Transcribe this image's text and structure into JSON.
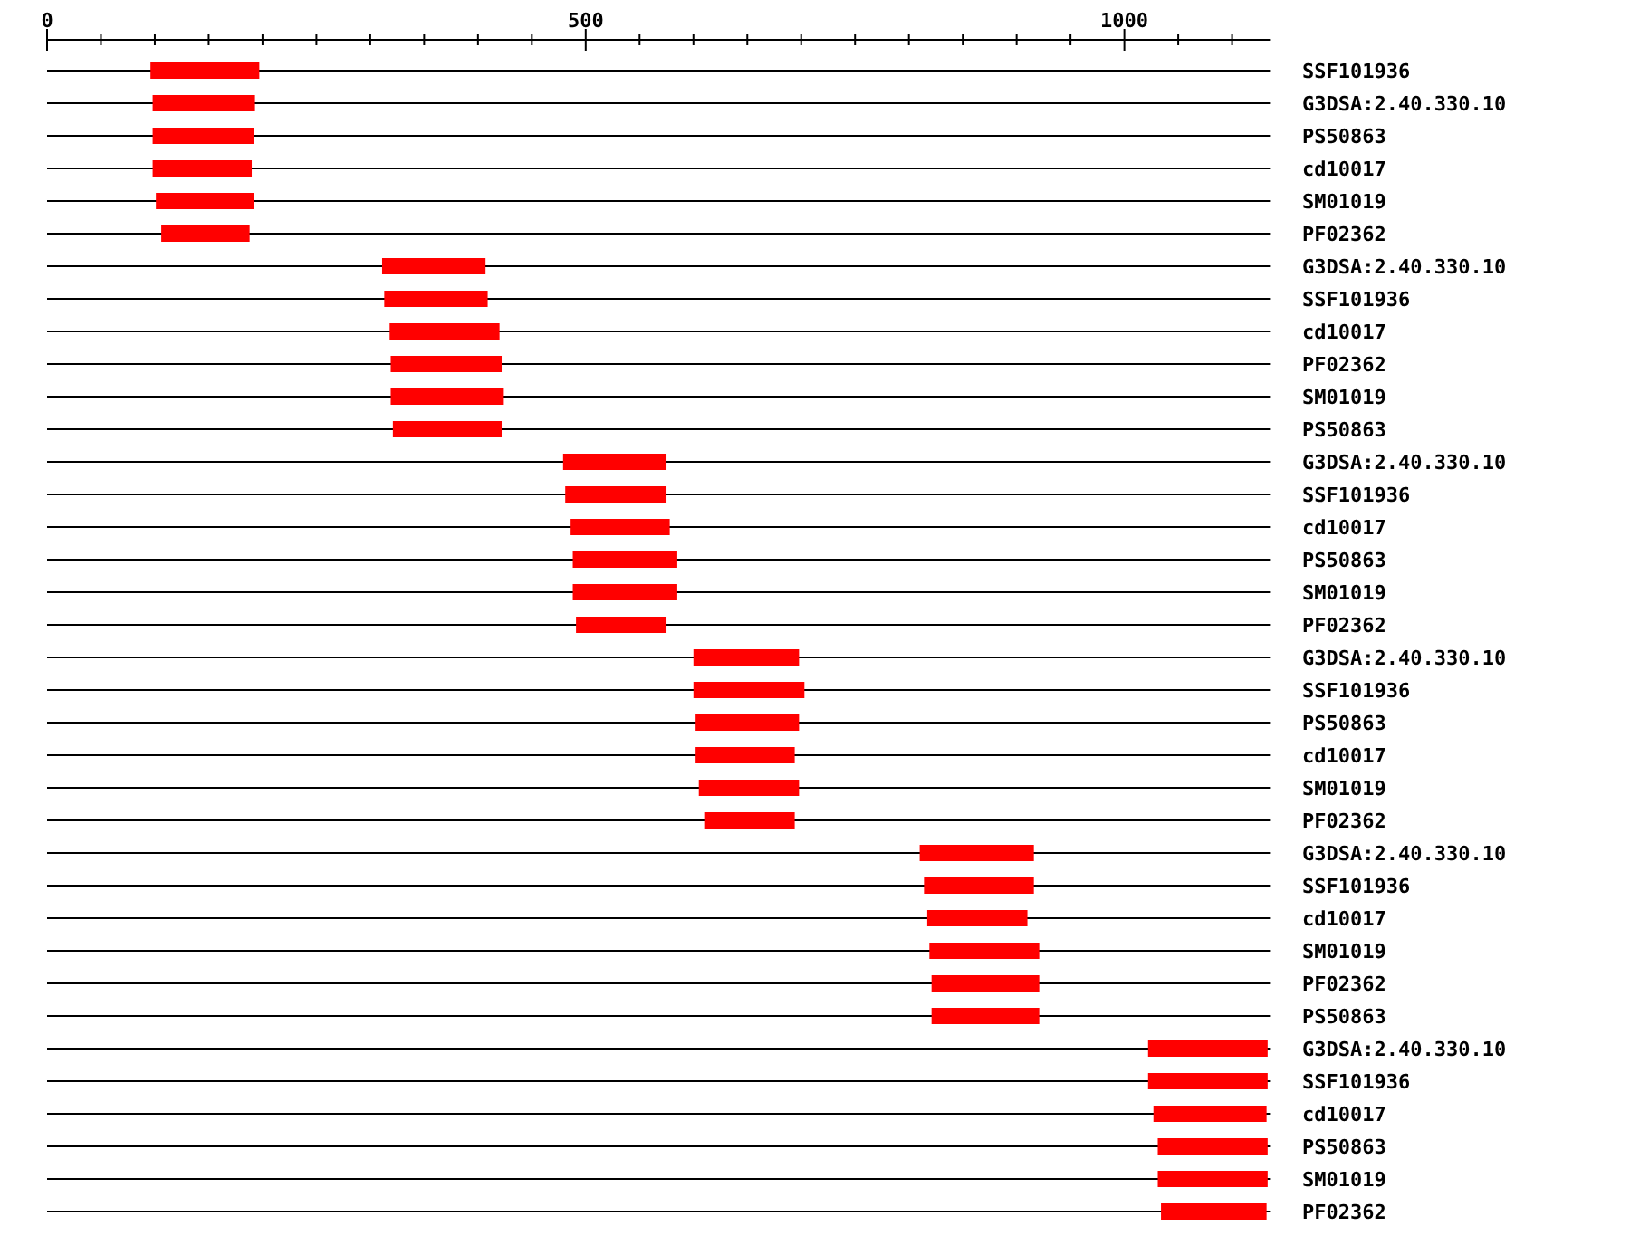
{
  "chart_data": {
    "type": "bar",
    "orientation": "horizontal",
    "categories": [
      "SSF101936",
      "G3DSA:2.40.330.10",
      "PS50863",
      "cd10017",
      "SM01019",
      "PF02362",
      "G3DSA:2.40.330.10",
      "SSF101936",
      "cd10017",
      "PF02362",
      "SM01019",
      "PS50863",
      "G3DSA:2.40.330.10",
      "SSF101936",
      "cd10017",
      "PS50863",
      "SM01019",
      "PF02362",
      "G3DSA:2.40.330.10",
      "SSF101936",
      "PS50863",
      "cd10017",
      "SM01019",
      "PF02362",
      "G3DSA:2.40.330.10",
      "SSF101936",
      "cd10017",
      "SM01019",
      "PF02362",
      "PS50863",
      "G3DSA:2.40.330.10",
      "SSF101936",
      "cd10017",
      "PS50863",
      "SM01019",
      "PF02362"
    ],
    "base": [
      96,
      98,
      98,
      98,
      101,
      106,
      311,
      313,
      318,
      319,
      319,
      321,
      479,
      481,
      486,
      488,
      488,
      491,
      600,
      600,
      602,
      602,
      605,
      610,
      810,
      814,
      817,
      819,
      821,
      821,
      1022,
      1022,
      1027,
      1031,
      1031,
      1034
    ],
    "values": [
      101,
      95,
      94,
      92,
      91,
      82,
      96,
      96,
      102,
      103,
      105,
      101,
      96,
      94,
      92,
      97,
      97,
      84,
      98,
      103,
      96,
      92,
      93,
      84,
      106,
      102,
      93,
      102,
      100,
      100,
      111,
      111,
      105,
      102,
      102,
      98
    ],
    "color": "#ff0000",
    "xlim": [
      0,
      1136
    ],
    "xticks": [
      0,
      {
        "value": 50,
        "label": null
      },
      {
        "value": 100,
        "label": null
      },
      {
        "value": 150,
        "label": null
      },
      {
        "value": 200,
        "label": null
      },
      {
        "value": 250,
        "label": null
      },
      {
        "value": 300,
        "label": null
      },
      {
        "value": 350,
        "label": null
      },
      {
        "value": 400,
        "label": null
      },
      {
        "value": 450,
        "label": null
      },
      500,
      {
        "value": 550,
        "label": null
      },
      {
        "value": 600,
        "label": null
      },
      {
        "value": 650,
        "label": null
      },
      {
        "value": 700,
        "label": null
      },
      {
        "value": 750,
        "label": null
      },
      {
        "value": 800,
        "label": null
      },
      {
        "value": 850,
        "label": null
      },
      {
        "value": 900,
        "label": null
      },
      {
        "value": 950,
        "label": null
      },
      1000,
      {
        "value": 1050,
        "label": null
      },
      {
        "value": 1100,
        "label": null
      }
    ],
    "grid": "y"
  }
}
